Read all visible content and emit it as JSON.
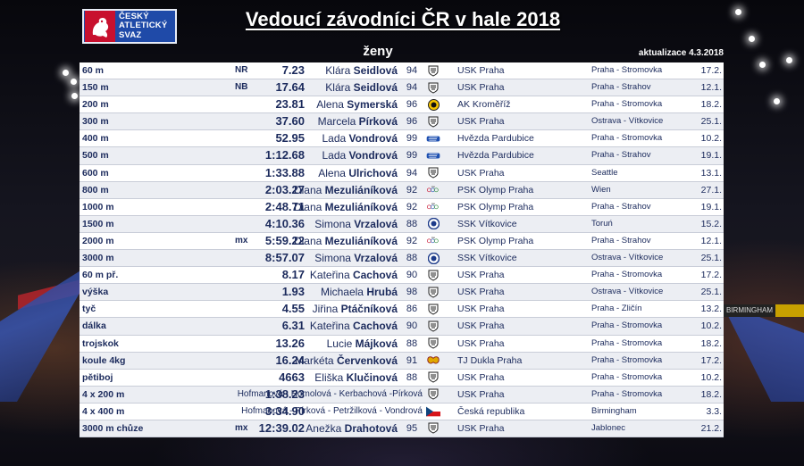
{
  "logo": {
    "line1": "ČESKÝ",
    "line2": "ATLETICKÝ",
    "line3": "SVAZ"
  },
  "title": "Vedoucí závodníci ČR v hale 2018",
  "category": "ženy",
  "updated": "aktualizace 4.3.2018",
  "rows": [
    {
      "discipline": "60 m",
      "result": "7.23",
      "note": "NR",
      "first": "Klára",
      "last": "Seidlová",
      "year": "94",
      "club_icon": "usk-icon",
      "club": "USK Praha",
      "place": "Praha - Stromovka",
      "date": "17.2."
    },
    {
      "discipline": "150 m",
      "result": "17.64",
      "note": "NB",
      "first": "Klára",
      "last": "Seidlová",
      "year": "94",
      "club_icon": "usk-icon",
      "club": "USK Praha",
      "place": "Praha - Strahov",
      "date": "12.1."
    },
    {
      "discipline": "200 m",
      "result": "23.81",
      "note": "",
      "first": "Alena",
      "last": "Symerská",
      "year": "96",
      "club_icon": "ak-kromeriz-icon",
      "club": "AK Kroměříž",
      "place": "Praha - Stromovka",
      "date": "18.2."
    },
    {
      "discipline": "300 m",
      "result": "37.60",
      "note": "",
      "first": "Marcela",
      "last": "Pírková",
      "year": "96",
      "club_icon": "usk-icon",
      "club": "USK Praha",
      "place": "Ostrava - Vítkovice",
      "date": "25.1."
    },
    {
      "discipline": "400 m",
      "result": "52.95",
      "note": "",
      "first": "Lada",
      "last": "Vondrová",
      "year": "99",
      "club_icon": "hvezda-icon",
      "club": "Hvězda Pardubice",
      "place": "Praha - Stromovka",
      "date": "10.2."
    },
    {
      "discipline": "500 m",
      "result": "1:12.68",
      "note": "",
      "first": "Lada",
      "last": "Vondrová",
      "year": "99",
      "club_icon": "hvezda-icon",
      "club": "Hvězda Pardubice",
      "place": "Praha - Strahov",
      "date": "19.1."
    },
    {
      "discipline": "600 m",
      "result": "1:33.88",
      "note": "",
      "first": "Alena",
      "last": "Ulrichová",
      "year": "94",
      "club_icon": "usk-icon",
      "club": "USK Praha",
      "place": "Seattle",
      "date": "13.1."
    },
    {
      "discipline": "800 m",
      "result": "2:03.27",
      "note": "",
      "first": "Diana",
      "last": "Mezuliáníková",
      "year": "92",
      "club_icon": "psk-olymp-icon",
      "club": "PSK Olymp Praha",
      "place": "Wien",
      "date": "27.1."
    },
    {
      "discipline": "1000 m",
      "result": "2:48.71",
      "note": "",
      "first": "Diana",
      "last": "Mezuliáníková",
      "year": "92",
      "club_icon": "psk-olymp-icon",
      "club": "PSK Olymp Praha",
      "place": "Praha - Strahov",
      "date": "19.1."
    },
    {
      "discipline": "1500 m",
      "result": "4:10.36",
      "note": "",
      "first": "Simona",
      "last": "Vrzalová",
      "year": "88",
      "club_icon": "ssk-vitkovice-icon",
      "club": "SSK Vítkovice",
      "place": "Toruń",
      "date": "15.2."
    },
    {
      "discipline": "2000 m",
      "result": "5:59.22",
      "note": "mx",
      "first": "Diana",
      "last": "Mezuliáníková",
      "year": "92",
      "club_icon": "psk-olymp-icon",
      "club": "PSK Olymp Praha",
      "place": "Praha - Strahov",
      "date": "12.1."
    },
    {
      "discipline": "3000 m",
      "result": "8:57.07",
      "note": "",
      "first": "Simona",
      "last": "Vrzalová",
      "year": "88",
      "club_icon": "ssk-vitkovice-icon",
      "club": "SSK Vítkovice",
      "place": "Ostrava - Vítkovice",
      "date": "25.1."
    },
    {
      "discipline": "60 m př.",
      "result": "8.17",
      "note": "",
      "first": "Kateřina",
      "last": "Cachová",
      "year": "90",
      "club_icon": "usk-icon",
      "club": "USK Praha",
      "place": "Praha - Stromovka",
      "date": "17.2."
    },
    {
      "discipline": "výška",
      "result": "1.93",
      "note": "",
      "first": "Michaela",
      "last": "Hrubá",
      "year": "98",
      "club_icon": "usk-icon",
      "club": "USK Praha",
      "place": "Ostrava - Vítkovice",
      "date": "25.1."
    },
    {
      "discipline": "tyč",
      "result": "4.55",
      "note": "",
      "first": "Jiřina",
      "last": "Ptáčníková",
      "year": "86",
      "club_icon": "usk-icon",
      "club": "USK Praha",
      "place": "Praha - Zličín",
      "date": "13.2."
    },
    {
      "discipline": "dálka",
      "result": "6.31",
      "note": "",
      "first": "Kateřina",
      "last": "Cachová",
      "year": "90",
      "club_icon": "usk-icon",
      "club": "USK Praha",
      "place": "Praha - Stromovka",
      "date": "10.2."
    },
    {
      "discipline": "trojskok",
      "result": "13.26",
      "note": "",
      "first": "Lucie",
      "last": "Májková",
      "year": "88",
      "club_icon": "usk-icon",
      "club": "USK Praha",
      "place": "Praha - Stromovka",
      "date": "18.2."
    },
    {
      "discipline": "koule 4kg",
      "result": "16.24",
      "note": "",
      "first": "Markéta",
      "last": "Červenková",
      "year": "91",
      "club_icon": "dukla-icon",
      "club": "TJ Dukla Praha",
      "place": "Praha - Stromovka",
      "date": "17.2."
    },
    {
      "discipline": "pětiboj",
      "result": "4663",
      "note": "",
      "first": "Eliška",
      "last": "Klučinová",
      "year": "88",
      "club_icon": "usk-icon",
      "club": "USK Praha",
      "place": "Praha - Stromovka",
      "date": "10.2."
    },
    {
      "discipline": "4 x 200 m",
      "result": "1:38.23",
      "note": "",
      "team": "Hofmanová - Homolová - Kerbachová -Pírková",
      "year": "",
      "club_icon": "usk-icon",
      "club": "USK Praha",
      "place": "Praha - Stromovka",
      "date": "18.2."
    },
    {
      "discipline": "4 x 400 m",
      "result": "3:34.90",
      "note": "",
      "team": "Hofmanová - Pírková - Petržilková - Vondrová",
      "year": "",
      "club_icon": "czech-flag-icon",
      "club": "Česká republika",
      "place": "Birmingham",
      "date": "3.3."
    },
    {
      "discipline": "3000 m chůze",
      "result": "12:39.02",
      "note": "mx",
      "first": "Anežka",
      "last": "Drahotová",
      "year": "95",
      "club_icon": "usk-icon",
      "club": "USK Praha",
      "place": "Jablonec",
      "date": "21.2."
    }
  ],
  "colors": {
    "text": "#1b2a5c",
    "logo_blue": "#1f4aa8",
    "logo_red": "#c8102e"
  },
  "background": {
    "banner_text": "BIRMINGHAM"
  }
}
